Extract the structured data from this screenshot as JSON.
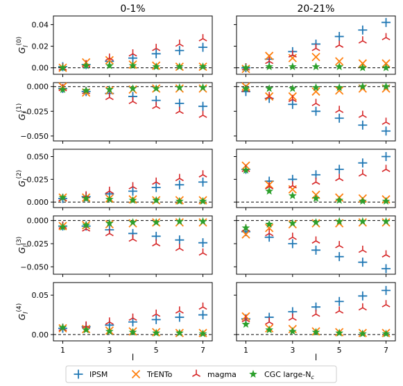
{
  "chart_data": {
    "type": "scatter",
    "layout": "5 rows x 2 columns, shared x per column, shared y per row",
    "columns": [
      "0-1%",
      "20-21%"
    ],
    "xlabel": "l",
    "x": [
      1,
      2,
      3,
      4,
      5,
      6,
      7
    ],
    "x_ticks": [
      "1",
      "3",
      "5",
      "7"
    ],
    "xlim": [
      0.6,
      7.4
    ],
    "reference_line": {
      "y": 0,
      "style": "dashed",
      "color": "#000000"
    },
    "series": [
      {
        "name": "IPSM",
        "marker": "plus",
        "color": "#1f77b4"
      },
      {
        "name": "TrENTo",
        "marker": "x",
        "color": "#ff7f0e"
      },
      {
        "name": "magma",
        "marker": "tri",
        "color": "#d62728"
      },
      {
        "name": "CGC large-N",
        "name_subscript": "c",
        "marker": "star",
        "color": "#2ca02c"
      }
    ],
    "rows": [
      {
        "ylabel_base": "G",
        "ylabel_sub": "l",
        "ylabel_sup": "(0)",
        "ylim": [
          -0.006,
          0.048
        ],
        "yticks": [
          0.0,
          0.02,
          0.04
        ],
        "ytick_labels": [
          "0.00",
          "0.02",
          "0.04"
        ],
        "panels": [
          {
            "IPSM": [
              0.001,
              0.003,
              0.006,
              0.009,
              0.013,
              0.016,
              0.019
            ],
            "TrENTo": [
              0.0,
              0.005,
              0.007,
              0.003,
              0.002,
              0.001,
              0.001
            ],
            "magma": [
              0.0,
              0.003,
              0.009,
              0.013,
              0.018,
              0.022,
              0.027
            ],
            "CGC large-N": [
              0.0,
              0.002,
              0.002,
              0.002,
              0.001,
              0.001,
              0.001
            ]
          },
          {
            "IPSM": [
              0.0,
              0.008,
              0.015,
              0.022,
              0.029,
              0.035,
              0.042
            ],
            "TrENTo": [
              -0.001,
              0.011,
              0.009,
              0.01,
              0.006,
              0.004,
              0.004
            ],
            "magma": [
              0.0,
              0.006,
              0.012,
              0.018,
              0.021,
              0.025,
              0.028
            ],
            "CGC large-N": [
              0.0,
              0.001,
              0.001,
              0.001,
              0.001,
              0.0,
              0.0
            ]
          }
        ]
      },
      {
        "ylabel_base": "G",
        "ylabel_sub": "l",
        "ylabel_sup": "(1)",
        "ylim": [
          -0.055,
          0.004
        ],
        "yticks": [
          0.0,
          -0.025,
          -0.05
        ],
        "ytick_labels": [
          "0.000",
          "−0.025",
          "−0.050"
        ],
        "panels": [
          {
            "IPSM": [
              -0.002,
              -0.005,
              -0.007,
              -0.01,
              -0.014,
              -0.017,
              -0.02
            ],
            "TrENTo": [
              0.0,
              -0.006,
              -0.004,
              -0.003,
              -0.002,
              -0.002,
              -0.002
            ],
            "magma": [
              -0.002,
              -0.005,
              -0.011,
              -0.015,
              -0.02,
              -0.025,
              -0.029
            ],
            "CGC large-N": [
              -0.003,
              -0.004,
              -0.003,
              -0.002,
              -0.002,
              -0.001,
              -0.001
            ]
          },
          {
            "IPSM": [
              -0.005,
              -0.012,
              -0.018,
              -0.025,
              -0.032,
              -0.039,
              -0.045
            ],
            "TrENTo": [
              0.0,
              -0.01,
              -0.01,
              -0.005,
              -0.004,
              -0.002,
              -0.002
            ],
            "magma": [
              -0.003,
              -0.01,
              -0.013,
              -0.017,
              -0.024,
              -0.029,
              -0.036
            ],
            "CGC large-N": [
              -0.002,
              -0.002,
              -0.002,
              -0.001,
              -0.001,
              0.0,
              0.0
            ]
          }
        ]
      },
      {
        "ylabel_base": "G",
        "ylabel_sub": "l",
        "ylabel_sup": "(2)",
        "ylim": [
          -0.006,
          0.058
        ],
        "yticks": [
          0.0,
          0.025,
          0.05
        ],
        "ytick_labels": [
          "0.000",
          "0.025",
          "0.050"
        ],
        "panels": [
          {
            "IPSM": [
              0.004,
              0.006,
              0.009,
              0.012,
              0.016,
              0.019,
              0.022
            ],
            "TrENTo": [
              0.005,
              0.005,
              0.004,
              0.003,
              0.002,
              0.002,
              0.002
            ],
            "magma": [
              0.004,
              0.007,
              0.012,
              0.017,
              0.022,
              0.026,
              0.03
            ],
            "CGC large-N": [
              0.005,
              0.004,
              0.003,
              0.002,
              0.002,
              0.001,
              0.001
            ]
          },
          {
            "IPSM": [
              0.036,
              0.023,
              0.025,
              0.03,
              0.036,
              0.043,
              0.05
            ],
            "TrENTo": [
              0.04,
              0.019,
              0.014,
              0.008,
              0.005,
              0.004,
              0.003
            ],
            "magma": [
              0.036,
              0.017,
              0.018,
              0.022,
              0.026,
              0.031,
              0.036
            ],
            "CGC large-N": [
              0.035,
              0.012,
              0.007,
              0.004,
              0.002,
              0.001,
              0.001
            ]
          }
        ]
      },
      {
        "ylabel_base": "G",
        "ylabel_sub": "l",
        "ylabel_sup": "(3)",
        "ylim": [
          -0.058,
          0.005
        ],
        "yticks": [
          0.0,
          -0.025,
          -0.05
        ],
        "ytick_labels": [
          "0.000",
          "−0.025",
          "−0.050"
        ],
        "panels": [
          {
            "IPSM": [
              -0.006,
              -0.006,
              -0.01,
              -0.014,
              -0.017,
              -0.021,
              -0.024
            ],
            "TrENTo": [
              -0.006,
              -0.005,
              -0.004,
              -0.003,
              -0.002,
              -0.002,
              -0.002
            ],
            "magma": [
              -0.006,
              -0.009,
              -0.014,
              -0.02,
              -0.025,
              -0.03,
              -0.035
            ],
            "CGC large-N": [
              -0.007,
              -0.005,
              -0.003,
              -0.002,
              -0.002,
              -0.001,
              -0.001
            ]
          },
          {
            "IPSM": [
              -0.012,
              -0.018,
              -0.025,
              -0.032,
              -0.039,
              -0.045,
              -0.052
            ],
            "TrENTo": [
              -0.015,
              -0.008,
              -0.004,
              -0.003,
              -0.003,
              -0.002,
              -0.002
            ],
            "magma": [
              -0.009,
              -0.014,
              -0.018,
              -0.022,
              -0.027,
              -0.032,
              -0.037
            ],
            "CGC large-N": [
              -0.008,
              -0.004,
              -0.003,
              -0.002,
              -0.001,
              -0.001,
              -0.001
            ]
          }
        ]
      },
      {
        "ylabel_base": "G",
        "ylabel_sub": "l",
        "ylabel_sup": "(4)",
        "ylim": [
          -0.008,
          0.066
        ],
        "yticks": [
          0.0,
          0.05
        ],
        "ytick_labels": [
          "0.00",
          "0.05"
        ],
        "panels": [
          {
            "IPSM": [
              0.008,
              0.01,
              0.012,
              0.016,
              0.019,
              0.022,
              0.025
            ],
            "TrENTo": [
              0.008,
              0.007,
              0.005,
              0.004,
              0.003,
              0.002,
              0.002
            ],
            "magma": [
              0.008,
              0.011,
              0.016,
              0.021,
              0.026,
              0.03,
              0.035
            ],
            "CGC large-N": [
              0.009,
              0.006,
              0.004,
              0.003,
              0.002,
              0.002,
              0.001
            ]
          },
          {
            "IPSM": [
              0.02,
              0.022,
              0.029,
              0.035,
              0.042,
              0.049,
              0.056
            ],
            "TrENTo": [
              0.023,
              0.008,
              0.007,
              0.004,
              0.003,
              0.002,
              0.002
            ],
            "magma": [
              0.019,
              0.016,
              0.021,
              0.026,
              0.03,
              0.034,
              0.038
            ],
            "CGC large-N": [
              0.013,
              0.006,
              0.004,
              0.003,
              0.002,
              0.001,
              0.001
            ]
          }
        ]
      }
    ]
  }
}
